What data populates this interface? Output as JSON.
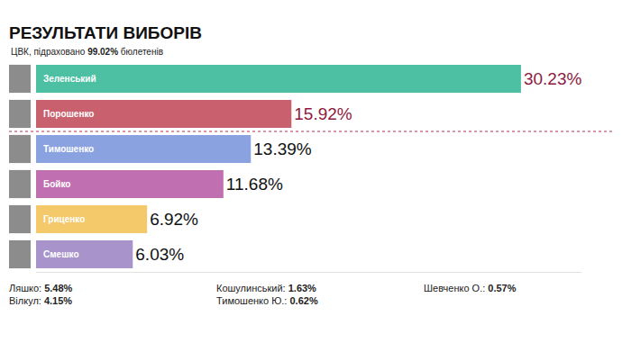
{
  "chart_data": {
    "type": "bar",
    "orientation": "horizontal",
    "title": "РЕЗУЛЬТАТИ ВИБОРІВ",
    "subtitle": "ЦВК, підраховано 99.02% бюлетенів",
    "categories": [
      "Зеленський",
      "Порошенко",
      "Тимошенко",
      "Бойко",
      "Гриценко",
      "Смешко"
    ],
    "values": [
      30.23,
      15.92,
      13.39,
      11.68,
      6.92,
      6.03
    ],
    "value_labels": [
      "30.23%",
      "15.92%",
      "13.39%",
      "11.68%",
      "6.92%",
      "6.03%"
    ],
    "colors": [
      "#4dbfa3",
      "#c9606e",
      "#8aa3e0",
      "#c06fb1",
      "#f3c96a",
      "#a894ca"
    ],
    "data_labels": true,
    "tick_labels": false,
    "grid": false,
    "xlim": [
      0,
      34
    ],
    "others": [
      {
        "name": "Ляшко:",
        "label": "5.48%"
      },
      {
        "name": "Вілкул:",
        "label": "4.15%"
      },
      {
        "name": "Кошулинський:",
        "label": "1.63%"
      },
      {
        "name": "Тимошенко Ю.:",
        "label": "0.62%"
      },
      {
        "name": "Шевченко О.:",
        "label": "0.57%"
      }
    ]
  }
}
